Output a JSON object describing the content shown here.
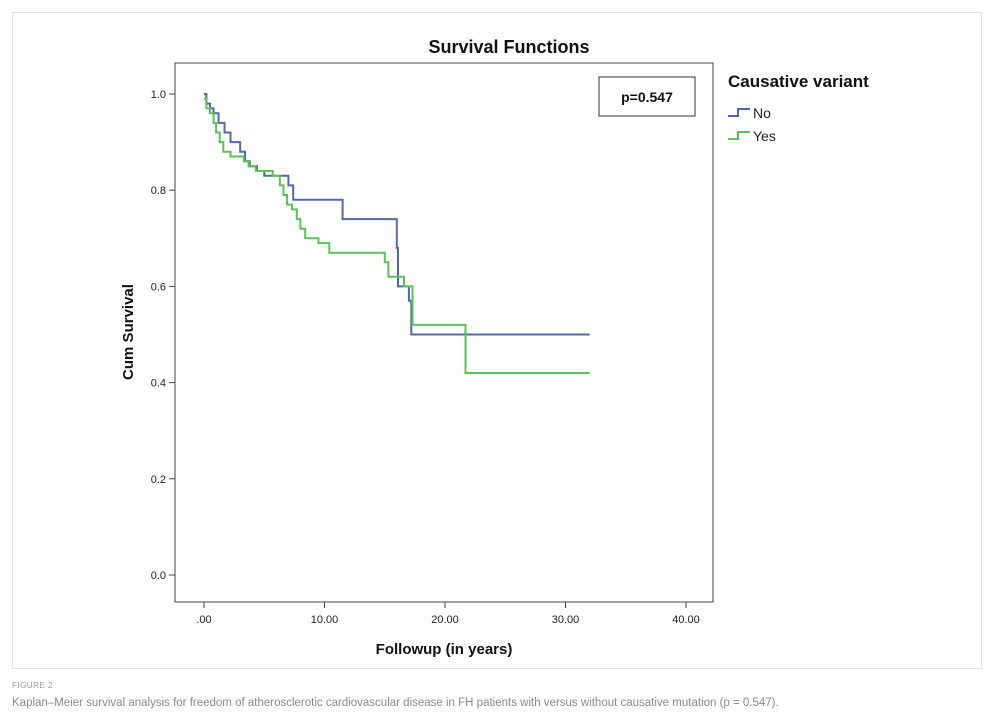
{
  "chart_data": {
    "type": "line",
    "title": "Survival Functions",
    "xlabel": "Followup (in years)",
    "ylabel": "Cum Survival",
    "xlim": [
      -2.5,
      40
    ],
    "ylim": [
      0,
      1.0
    ],
    "x_ticks": [
      ".00",
      "10.00",
      "20.00",
      "30.00",
      "40.00"
    ],
    "y_ticks": [
      "0.0",
      "0.2",
      "0.4",
      "0.6",
      "0.8",
      "1.0"
    ],
    "x_tick_values": [
      0,
      10,
      20,
      30,
      40
    ],
    "y_tick_values": [
      0,
      0.2,
      0.4,
      0.6,
      0.8,
      1.0
    ],
    "legend_title": "Causative variant",
    "legend_position": "top-right outside",
    "annotation": "p=0.547",
    "grid": false,
    "series": [
      {
        "name": "No",
        "color": "#5468a8",
        "step_points": [
          [
            0,
            1.0
          ],
          [
            0.2,
            0.98
          ],
          [
            0.5,
            0.97
          ],
          [
            0.8,
            0.96
          ],
          [
            1.2,
            0.94
          ],
          [
            1.7,
            0.92
          ],
          [
            2.2,
            0.9
          ],
          [
            3.0,
            0.88
          ],
          [
            3.4,
            0.86
          ],
          [
            3.8,
            0.85
          ],
          [
            4.4,
            0.84
          ],
          [
            5.0,
            0.83
          ],
          [
            7.0,
            0.81
          ],
          [
            7.4,
            0.78
          ],
          [
            11.5,
            0.74
          ],
          [
            16.0,
            0.68
          ],
          [
            16.1,
            0.6
          ],
          [
            17.0,
            0.57
          ],
          [
            17.2,
            0.5
          ],
          [
            32.0,
            0.5
          ]
        ]
      },
      {
        "name": "Yes",
        "color": "#5cc05c",
        "step_points": [
          [
            0,
            0.99
          ],
          [
            0.2,
            0.97
          ],
          [
            0.5,
            0.96
          ],
          [
            0.8,
            0.94
          ],
          [
            1.0,
            0.92
          ],
          [
            1.3,
            0.9
          ],
          [
            1.6,
            0.88
          ],
          [
            2.2,
            0.87
          ],
          [
            3.3,
            0.86
          ],
          [
            3.7,
            0.85
          ],
          [
            4.3,
            0.84
          ],
          [
            5.7,
            0.83
          ],
          [
            6.3,
            0.81
          ],
          [
            6.6,
            0.79
          ],
          [
            6.9,
            0.77
          ],
          [
            7.3,
            0.76
          ],
          [
            7.7,
            0.74
          ],
          [
            8.0,
            0.72
          ],
          [
            8.4,
            0.7
          ],
          [
            9.5,
            0.69
          ],
          [
            10.4,
            0.67
          ],
          [
            15.0,
            0.65
          ],
          [
            15.3,
            0.62
          ],
          [
            16.2,
            0.62
          ],
          [
            16.6,
            0.6
          ],
          [
            17.3,
            0.52
          ],
          [
            21.7,
            0.42
          ],
          [
            32.0,
            0.42
          ]
        ]
      }
    ]
  },
  "figure": {
    "label": "FIGURE 2",
    "caption": "Kaplan–Meier survival analysis for freedom of atherosclerotic cardiovascular disease in FH patients with versus without causative mutation (p = 0.547)."
  }
}
